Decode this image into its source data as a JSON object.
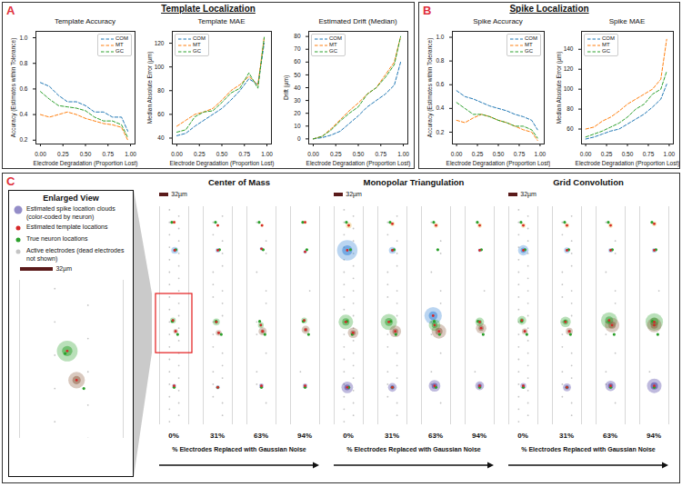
{
  "panels": [
    {
      "letter": "A",
      "title": "Template Localization"
    },
    {
      "letter": "B",
      "title": "Spike Localization"
    },
    {
      "letter": "C"
    }
  ],
  "chart_data": [
    {
      "panel": "A",
      "type": "line",
      "title": "Template Accuracy",
      "x": [
        0,
        0.1,
        0.2,
        0.3,
        0.4,
        0.5,
        0.6,
        0.7,
        0.8,
        0.9,
        0.97
      ],
      "xlim": [
        -0.05,
        1.05
      ],
      "xticks": [
        {
          "value": 0,
          "label": "0.00"
        },
        0.25,
        {
          "value": 0.5,
          "label": "0.50"
        },
        0.75,
        {
          "value": 1,
          "label": "1.00"
        }
      ],
      "x_label": "Electrode Degradation (Proportion Lost)",
      "ylim": [
        0.17,
        1.05
      ],
      "yticks": [
        0.2,
        0.4,
        0.6,
        0.8,
        {
          "value": 1,
          "label": "1.0"
        }
      ],
      "y_label": "Accuracy (Estimates within Tolerance)",
      "legend": "upper right",
      "grid": false,
      "series": [
        {
          "name": "COM",
          "color": "#1f77b4",
          "line_style": "dashed",
          "values": [
            0.65,
            0.62,
            0.55,
            0.5,
            0.5,
            0.47,
            0.42,
            0.42,
            0.38,
            0.38,
            0.27
          ]
        },
        {
          "name": "MT",
          "color": "#ff7f0e",
          "line_style": "dashed",
          "values": [
            0.4,
            0.38,
            0.4,
            0.42,
            0.4,
            0.37,
            0.35,
            0.33,
            0.32,
            0.3,
            0.2
          ]
        },
        {
          "name": "GC",
          "color": "#2ca02c",
          "line_style": "dashed",
          "values": [
            0.58,
            0.52,
            0.47,
            0.46,
            0.45,
            0.43,
            0.38,
            0.35,
            0.35,
            0.32,
            0.22
          ]
        }
      ]
    },
    {
      "panel": "A",
      "type": "line",
      "title": "Template MAE",
      "x": [
        0,
        0.1,
        0.2,
        0.3,
        0.4,
        0.5,
        0.6,
        0.7,
        0.8,
        0.9,
        0.97
      ],
      "xlim": [
        -0.05,
        1.05
      ],
      "xticks": [
        {
          "value": 0,
          "label": "0.00"
        },
        0.25,
        {
          "value": 0.5,
          "label": "0.50"
        },
        0.75,
        {
          "value": 1,
          "label": "1.00"
        }
      ],
      "x_label": "Electrode Degradation (Proportion Lost)",
      "ylim": [
        35,
        130
      ],
      "yticks": [
        40,
        60,
        80,
        100,
        120
      ],
      "y_label": "Median Absolute Error (µm)",
      "legend": "upper left",
      "grid": false,
      "series": [
        {
          "name": "COM",
          "color": "#1f77b4",
          "line_style": "dashed",
          "values": [
            42,
            44,
            50,
            55,
            60,
            65,
            72,
            80,
            90,
            85,
            120
          ]
        },
        {
          "name": "MT",
          "color": "#ff7f0e",
          "line_style": "dashed",
          "values": [
            50,
            55,
            60,
            62,
            65,
            72,
            80,
            85,
            92,
            85,
            125
          ]
        },
        {
          "name": "GC",
          "color": "#2ca02c",
          "line_style": "dashed",
          "values": [
            45,
            47,
            58,
            62,
            63,
            70,
            78,
            82,
            95,
            82,
            125
          ]
        }
      ]
    },
    {
      "panel": "A",
      "type": "line",
      "title": "Estimated Drift (Median)",
      "x": [
        0,
        0.1,
        0.2,
        0.3,
        0.4,
        0.5,
        0.6,
        0.7,
        0.8,
        0.9,
        0.97
      ],
      "xlim": [
        -0.05,
        1.05
      ],
      "xticks": [
        {
          "value": 0,
          "label": "0.00"
        },
        0.25,
        {
          "value": 0.5,
          "label": "0.50"
        },
        0.75,
        {
          "value": 1,
          "label": "1.00"
        }
      ],
      "x_label": "Electrode Degradation (Proportion Lost)",
      "ylim": [
        -4,
        84
      ],
      "yticks": [
        0,
        10,
        20,
        30,
        40,
        50,
        60,
        70,
        80
      ],
      "y_label": "Drift (µm)",
      "legend": "upper left",
      "grid": false,
      "series": [
        {
          "name": "COM",
          "color": "#1f77b4",
          "line_style": "dashed",
          "values": [
            0,
            1,
            3,
            6,
            12,
            18,
            25,
            30,
            35,
            42,
            60
          ]
        },
        {
          "name": "MT",
          "color": "#ff7f0e",
          "line_style": "dashed",
          "values": [
            0,
            2,
            8,
            15,
            22,
            28,
            35,
            40,
            50,
            60,
            80
          ]
        },
        {
          "name": "GC",
          "color": "#2ca02c",
          "line_style": "dashed",
          "values": [
            0,
            2,
            7,
            14,
            20,
            25,
            35,
            40,
            48,
            58,
            80
          ]
        }
      ]
    },
    {
      "panel": "B",
      "type": "line",
      "title": "Spike Accuracy",
      "x": [
        0,
        0.1,
        0.2,
        0.3,
        0.4,
        0.5,
        0.6,
        0.7,
        0.8,
        0.9,
        0.97
      ],
      "xlim": [
        -0.05,
        1.05
      ],
      "xticks": [
        {
          "value": 0,
          "label": "0.00"
        },
        0.25,
        {
          "value": 0.5,
          "label": "0.50"
        },
        0.75,
        {
          "value": 1,
          "label": "1.00"
        }
      ],
      "x_label": "Electrode Degradation (Proportion Lost)",
      "ylim": [
        0.1,
        1.05
      ],
      "yticks": [
        0.2,
        0.4,
        0.6,
        0.8,
        {
          "value": 1,
          "label": "1.0"
        }
      ],
      "y_label": "Accuracy (Estimates within Tolerance)",
      "legend": "upper right",
      "grid": false,
      "series": [
        {
          "name": "COM",
          "color": "#1f77b4",
          "line_style": "dashed",
          "values": [
            0.55,
            0.5,
            0.48,
            0.45,
            0.42,
            0.4,
            0.38,
            0.35,
            0.33,
            0.3,
            0.22
          ]
        },
        {
          "name": "MT",
          "color": "#ff7f0e",
          "line_style": "dashed",
          "values": [
            0.3,
            0.28,
            0.32,
            0.35,
            0.33,
            0.3,
            0.28,
            0.25,
            0.22,
            0.2,
            0.13
          ]
        },
        {
          "name": "GC",
          "color": "#2ca02c",
          "line_style": "dashed",
          "values": [
            0.45,
            0.4,
            0.35,
            0.35,
            0.33,
            0.3,
            0.28,
            0.25,
            0.25,
            0.22,
            0.15
          ]
        }
      ]
    },
    {
      "panel": "B",
      "type": "line",
      "title": "Spike MAE",
      "x": [
        0,
        0.1,
        0.2,
        0.3,
        0.4,
        0.5,
        0.6,
        0.7,
        0.8,
        0.9,
        0.97
      ],
      "xlim": [
        -0.05,
        1.05
      ],
      "xticks": [
        {
          "value": 0,
          "label": "0.00"
        },
        0.25,
        {
          "value": 0.5,
          "label": "0.50"
        },
        0.75,
        {
          "value": 1,
          "label": "1.00"
        }
      ],
      "x_label": "Electrode Degradation (Proportion Lost)",
      "ylim": [
        45,
        158
      ],
      "yticks": [
        60,
        80,
        100,
        120,
        140
      ],
      "y_label": "Median Absolute Error (µm)",
      "legend": "upper left",
      "grid": false,
      "series": [
        {
          "name": "COM",
          "color": "#1f77b4",
          "line_style": "dashed",
          "values": [
            50,
            52,
            55,
            58,
            60,
            65,
            70,
            75,
            82,
            90,
            105
          ]
        },
        {
          "name": "MT",
          "color": "#ff7f0e",
          "line_style": "dashed",
          "values": [
            60,
            62,
            68,
            72,
            78,
            85,
            90,
            95,
            100,
            110,
            150
          ]
        },
        {
          "name": "GC",
          "color": "#2ca02c",
          "line_style": "dashed",
          "values": [
            52,
            55,
            58,
            62,
            66,
            72,
            80,
            85,
            95,
            100,
            118
          ]
        }
      ]
    }
  ],
  "localization_view": {
    "type": "scatter",
    "enlarged_title": "Enlarged View",
    "legend_items": [
      {
        "label": "Estimated spike location clouds (color-coded by neuron)",
        "marker": "cloud"
      },
      {
        "label": "Estimated template locations",
        "marker": "dot",
        "color": "#d62728"
      },
      {
        "label": "True neuron locations",
        "marker": "dot",
        "color": "#2ca02c"
      },
      {
        "label": "Active electrodes (dead electrodes not shown)",
        "marker": "dot",
        "color": "#c4c4c4"
      }
    ],
    "scale_bar": {
      "value": 32,
      "label": "32µm"
    },
    "xlim": [
      -50,
      50
    ],
    "ylim": [
      0,
      700
    ],
    "enlarged_ylim": [
      230,
      420
    ],
    "highlight": {
      "method": "Center of Mass",
      "level": "0%"
    },
    "neuron_colors": [
      "#e8b03a",
      "#2e7fd6",
      "#2ca02c",
      "#8b5a3c",
      "#3d2f9a"
    ],
    "true_locations": [
      [
        -8,
        650
      ],
      [
        6,
        562
      ],
      [
        -6,
        332
      ],
      [
        12,
        290
      ],
      [
        0,
        120
      ]
    ],
    "x_label": "% Electrodes Replaced with Gaussian Noise",
    "levels": [
      {
        "label": "0%",
        "value": 0
      },
      {
        "label": "31%",
        "value": 31
      },
      {
        "label": "63%",
        "value": 63
      },
      {
        "label": "94%",
        "value": 94
      }
    ],
    "methods": [
      {
        "title": "Center of Mass",
        "clouds": [
          [
            [
              0,
              650,
              6
            ],
            [
              2,
              560,
              12
            ],
            [
              -4,
              335,
              10
            ],
            [
              5,
              300,
              8
            ],
            [
              0,
              125,
              7
            ]
          ],
          [
            [
              0,
              640,
              5
            ],
            [
              0,
              560,
              8
            ],
            [
              -5,
              330,
              12
            ],
            [
              3,
              295,
              10
            ],
            [
              0,
              120,
              7
            ]
          ],
          [
            [
              2,
              640,
              6
            ],
            [
              0,
              565,
              6
            ],
            [
              -2,
              320,
              10
            ],
            [
              4,
              300,
              14
            ],
            [
              0,
              125,
              8
            ]
          ],
          [
            [
              0,
              650,
              6
            ],
            [
              0,
              555,
              6
            ],
            [
              -3,
              335,
              10
            ],
            [
              2,
              305,
              14
            ],
            [
              0,
              125,
              8
            ]
          ]
        ]
      },
      {
        "title": "Monopolar Triangulation",
        "clouds": [
          [
            [
              0,
              640,
              10
            ],
            [
              -5,
              560,
              35
            ],
            [
              -10,
              330,
              25
            ],
            [
              15,
              295,
              18
            ],
            [
              -5,
              120,
              20
            ]
          ],
          [
            [
              0,
              645,
              8
            ],
            [
              0,
              560,
              12
            ],
            [
              -12,
              330,
              28
            ],
            [
              10,
              300,
              20
            ],
            [
              0,
              120,
              15
            ]
          ],
          [
            [
              0,
              640,
              8
            ],
            [
              -10,
              350,
              30
            ],
            [
              -5,
              320,
              20
            ],
            [
              10,
              300,
              25
            ],
            [
              -5,
              125,
              20
            ]
          ],
          [
            [
              0,
              640,
              8
            ],
            [
              0,
              560,
              6
            ],
            [
              0,
              330,
              15
            ],
            [
              5,
              310,
              18
            ],
            [
              0,
              125,
              15
            ]
          ]
        ]
      },
      {
        "title": "Grid Convolution",
        "clouds": [
          [
            [
              0,
              640,
              8
            ],
            [
              0,
              560,
              18
            ],
            [
              -5,
              335,
              15
            ],
            [
              5,
              300,
              10
            ],
            [
              0,
              125,
              10
            ]
          ],
          [
            [
              0,
              640,
              8
            ],
            [
              0,
              560,
              10
            ],
            [
              -5,
              330,
              18
            ],
            [
              8,
              300,
              12
            ],
            [
              0,
              120,
              14
            ]
          ],
          [
            [
              0,
              640,
              8
            ],
            [
              0,
              560,
              8
            ],
            [
              -5,
              335,
              28
            ],
            [
              5,
              320,
              25
            ],
            [
              0,
              125,
              18
            ]
          ],
          [
            [
              0,
              645,
              8
            ],
            [
              0,
              560,
              8
            ],
            [
              0,
              330,
              30
            ],
            [
              0,
              320,
              25
            ],
            [
              0,
              125,
              25
            ]
          ]
        ]
      }
    ]
  }
}
